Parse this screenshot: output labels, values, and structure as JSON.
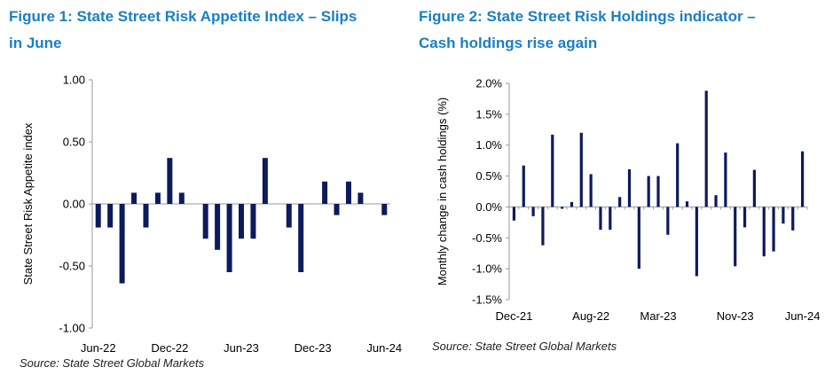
{
  "colors": {
    "title": "#1a7fc4",
    "bar": "#0d1a5c",
    "axis": "#999999"
  },
  "fig1": {
    "title_line1": "Figure 1: State Street Risk Appetite Index – Slips",
    "title_line2": "in June",
    "source": "Source: State Street Global Markets"
  },
  "fig2": {
    "title_line1": "Figure 2: State Street Risk Holdings indicator –",
    "title_line2": "Cash holdings rise again",
    "source": "Source: State Street Global Markets"
  },
  "chart_data": [
    {
      "type": "bar",
      "ylabel": "State Street Risk Appetite index",
      "ylim": [
        -1.0,
        1.0
      ],
      "yticks": [
        1.0,
        0.5,
        0.0,
        -0.5,
        -1.0
      ],
      "ytick_labels": [
        "1.00",
        "0.50",
        "0.00",
        "-0.50",
        "-1.00"
      ],
      "xtick_labels": [
        "Jun-22",
        "Dec-22",
        "Jun-23",
        "Dec-23",
        "Jun-24"
      ],
      "xtick_index": [
        0,
        6,
        12,
        18,
        24
      ],
      "series": [
        {
          "values": [
            -0.19,
            -0.19,
            -0.64,
            0.09,
            -0.19,
            0.09,
            0.37,
            0.09,
            null,
            -0.28,
            -0.37,
            -0.55,
            -0.28,
            -0.28,
            0.37,
            null,
            -0.19,
            -0.55,
            null,
            0.18,
            -0.09,
            0.18,
            0.09,
            null,
            -0.09
          ]
        }
      ]
    },
    {
      "type": "bar",
      "ylabel": "Monthly change in cash holdings (%)",
      "ylim": [
        -1.5,
        2.0
      ],
      "yticks": [
        2.0,
        1.5,
        1.0,
        0.5,
        0.0,
        -0.5,
        -1.0,
        -1.5
      ],
      "ytick_labels": [
        "2.0%",
        "1.5%",
        "1.0%",
        "0.5%",
        "0.0%",
        "-0.5%",
        "-1.0%",
        "-1.5%"
      ],
      "xtick_labels": [
        "Dec-21",
        "Aug-22",
        "Mar-23",
        "Nov-23",
        "Jun-24"
      ],
      "xtick_index": [
        0,
        8,
        15,
        23,
        30
      ],
      "series": [
        {
          "values": [
            -0.22,
            0.67,
            -0.15,
            -0.62,
            1.17,
            -0.03,
            0.08,
            1.2,
            0.53,
            -0.37,
            -0.37,
            0.16,
            0.61,
            -1.0,
            0.5,
            0.5,
            -0.45,
            1.03,
            0.09,
            -1.12,
            1.88,
            0.19,
            0.88,
            -0.96,
            -0.33,
            0.6,
            -0.8,
            -0.72,
            -0.27,
            -0.38,
            0.9
          ]
        }
      ]
    }
  ]
}
